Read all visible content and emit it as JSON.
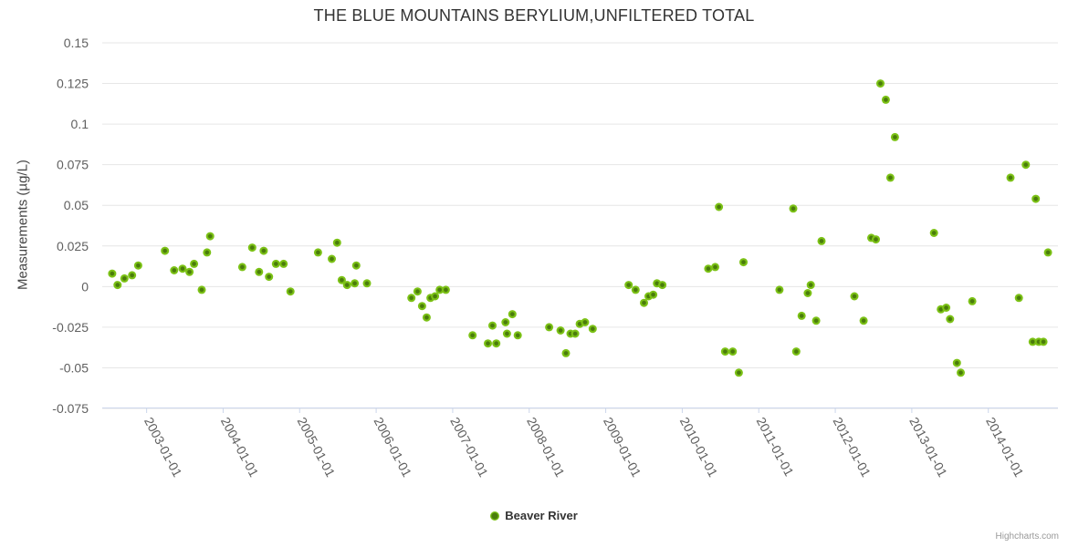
{
  "title": "THE BLUE MOUNTAINS BERYLIUM,UNFILTERED TOTAL",
  "credits": "Highcharts.com",
  "legend": {
    "label": "Beaver River"
  },
  "colors": {
    "point_outer": "#7cc216",
    "point_inner": "#4a7c0b",
    "grid": "#e6e6e6",
    "axis_line": "#ccd6eb",
    "title_text": "#333333",
    "label_text": "#606060",
    "credits_text": "#999999"
  },
  "chart_data": {
    "type": "scatter",
    "title": "THE BLUE MOUNTAINS BERYLIUM,UNFILTERED TOTAL",
    "xlabel": "",
    "ylabel": "Measurements (µg/L)",
    "grid": true,
    "legend_position": "bottom-center",
    "xlim": [
      2002.42,
      2014.91
    ],
    "ylim": [
      -0.075,
      0.15
    ],
    "yticks": [
      {
        "v": 0.15,
        "label": "0.15"
      },
      {
        "v": 0.125,
        "label": "0.125"
      },
      {
        "v": 0.1,
        "label": "0.1"
      },
      {
        "v": 0.075,
        "label": "0.075"
      },
      {
        "v": 0.05,
        "label": "0.05"
      },
      {
        "v": 0.025,
        "label": "0.025"
      },
      {
        "v": 0,
        "label": "0"
      },
      {
        "v": -0.025,
        "label": "-0.025"
      },
      {
        "v": -0.05,
        "label": "-0.05"
      },
      {
        "v": -0.075,
        "label": "-0.075"
      }
    ],
    "xticks": [
      {
        "v": 2003,
        "label": "2003-01-01"
      },
      {
        "v": 2004,
        "label": "2004-01-01"
      },
      {
        "v": 2005,
        "label": "2005-01-01"
      },
      {
        "v": 2006,
        "label": "2006-01-01"
      },
      {
        "v": 2007,
        "label": "2007-01-01"
      },
      {
        "v": 2008,
        "label": "2008-01-01"
      },
      {
        "v": 2009,
        "label": "2009-01-01"
      },
      {
        "v": 2010,
        "label": "2010-01-01"
      },
      {
        "v": 2011,
        "label": "2011-01-01"
      },
      {
        "v": 2012,
        "label": "2012-01-01"
      },
      {
        "v": 2013,
        "label": "2013-01-01"
      },
      {
        "v": 2014,
        "label": "2014-01-01"
      }
    ],
    "series": [
      {
        "name": "Beaver River",
        "color": "#7cc216",
        "points": [
          [
            2002.55,
            0.008
          ],
          [
            2002.62,
            0.001
          ],
          [
            2002.71,
            0.005
          ],
          [
            2002.81,
            0.007
          ],
          [
            2002.89,
            0.013
          ],
          [
            2003.24,
            0.022
          ],
          [
            2003.36,
            0.01
          ],
          [
            2003.47,
            0.011
          ],
          [
            2003.56,
            0.009
          ],
          [
            2003.62,
            0.014
          ],
          [
            2003.72,
            -0.002
          ],
          [
            2003.79,
            0.021
          ],
          [
            2003.83,
            0.031
          ],
          [
            2004.25,
            0.012
          ],
          [
            2004.38,
            0.024
          ],
          [
            2004.47,
            0.009
          ],
          [
            2004.53,
            0.022
          ],
          [
            2004.6,
            0.006
          ],
          [
            2004.69,
            0.014
          ],
          [
            2004.79,
            0.014
          ],
          [
            2004.88,
            -0.003
          ],
          [
            2005.24,
            0.021
          ],
          [
            2005.42,
            0.017
          ],
          [
            2005.49,
            0.027
          ],
          [
            2005.55,
            0.004
          ],
          [
            2005.62,
            0.001
          ],
          [
            2005.72,
            0.002
          ],
          [
            2005.74,
            0.013
          ],
          [
            2005.88,
            0.002
          ],
          [
            2006.46,
            -0.007
          ],
          [
            2006.54,
            -0.003
          ],
          [
            2006.6,
            -0.012
          ],
          [
            2006.66,
            -0.019
          ],
          [
            2006.71,
            -0.007
          ],
          [
            2006.77,
            -0.006
          ],
          [
            2006.83,
            -0.002
          ],
          [
            2006.91,
            -0.002
          ],
          [
            2007.26,
            -0.03
          ],
          [
            2007.46,
            -0.035
          ],
          [
            2007.52,
            -0.024
          ],
          [
            2007.57,
            -0.035
          ],
          [
            2007.69,
            -0.022
          ],
          [
            2007.71,
            -0.029
          ],
          [
            2007.78,
            -0.017
          ],
          [
            2007.85,
            -0.03
          ],
          [
            2008.26,
            -0.025
          ],
          [
            2008.41,
            -0.027
          ],
          [
            2008.48,
            -0.041
          ],
          [
            2008.54,
            -0.029
          ],
          [
            2008.6,
            -0.029
          ],
          [
            2008.66,
            -0.023
          ],
          [
            2008.73,
            -0.022
          ],
          [
            2008.83,
            -0.026
          ],
          [
            2009.3,
            0.001
          ],
          [
            2009.39,
            -0.002
          ],
          [
            2009.5,
            -0.01
          ],
          [
            2009.56,
            -0.006
          ],
          [
            2009.62,
            -0.005
          ],
          [
            2009.67,
            0.002
          ],
          [
            2009.74,
            0.001
          ],
          [
            2010.34,
            0.011
          ],
          [
            2010.43,
            0.012
          ],
          [
            2010.48,
            0.049
          ],
          [
            2010.56,
            -0.04
          ],
          [
            2010.66,
            -0.04
          ],
          [
            2010.74,
            -0.053
          ],
          [
            2010.8,
            0.015
          ],
          [
            2011.27,
            -0.002
          ],
          [
            2011.45,
            0.048
          ],
          [
            2011.49,
            -0.04
          ],
          [
            2011.56,
            -0.018
          ],
          [
            2011.64,
            -0.004
          ],
          [
            2011.68,
            0.001
          ],
          [
            2011.75,
            -0.021
          ],
          [
            2011.82,
            0.028
          ],
          [
            2012.25,
            -0.006
          ],
          [
            2012.37,
            -0.021
          ],
          [
            2012.47,
            0.03
          ],
          [
            2012.53,
            0.029
          ],
          [
            2012.59,
            0.125
          ],
          [
            2012.66,
            0.115
          ],
          [
            2012.72,
            0.067
          ],
          [
            2012.78,
            0.092
          ],
          [
            2013.29,
            0.033
          ],
          [
            2013.38,
            -0.014
          ],
          [
            2013.45,
            -0.013
          ],
          [
            2013.5,
            -0.02
          ],
          [
            2013.59,
            -0.047
          ],
          [
            2013.64,
            -0.053
          ],
          [
            2013.79,
            -0.009
          ],
          [
            2014.29,
            0.067
          ],
          [
            2014.4,
            -0.007
          ],
          [
            2014.49,
            0.075
          ],
          [
            2014.58,
            -0.034
          ],
          [
            2014.62,
            0.054
          ],
          [
            2014.66,
            -0.034
          ],
          [
            2014.72,
            -0.034
          ],
          [
            2014.78,
            0.021
          ]
        ]
      }
    ]
  }
}
